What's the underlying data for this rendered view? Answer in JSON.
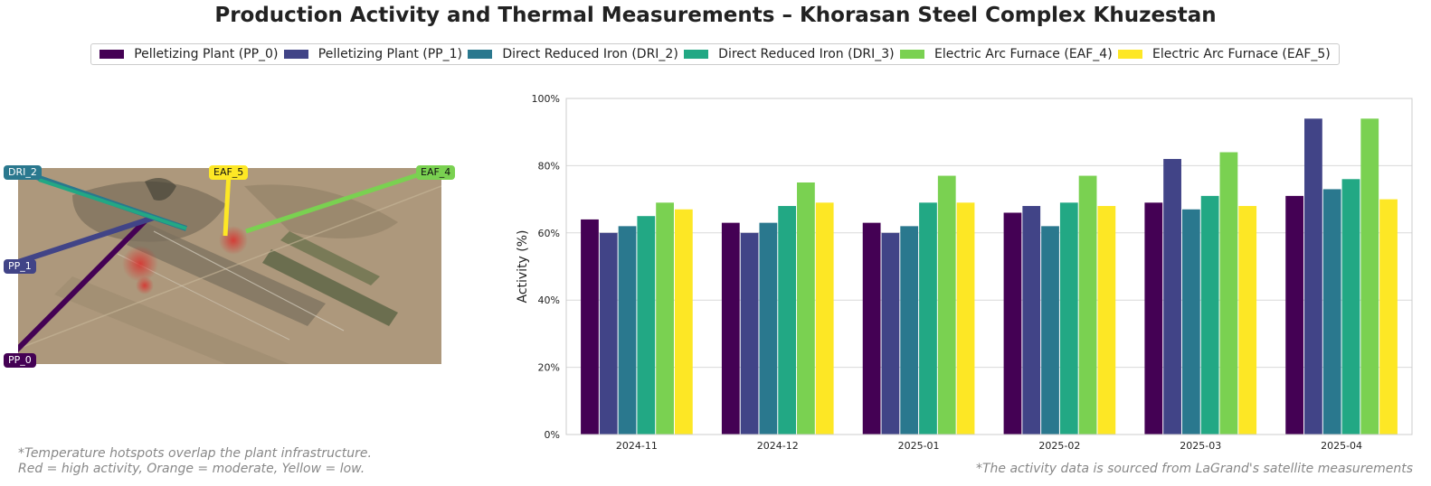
{
  "title": "Production Activity and Thermal Measurements – Khorasan Steel Complex Khuzestan",
  "legend": [
    {
      "label": "Pelletizing Plant (PP_0)",
      "color": "#440154"
    },
    {
      "label": "Pelletizing Plant (PP_1)",
      "color": "#414487"
    },
    {
      "label": "Direct Reduced Iron (DRI_2)",
      "color": "#2a788e"
    },
    {
      "label": "Direct Reduced Iron (DRI_3)",
      "color": "#22a884"
    },
    {
      "label": "Electric Arc Furnace (EAF_4)",
      "color": "#7ad151"
    },
    {
      "label": "Electric Arc Furnace (EAF_5)",
      "color": "#fde725"
    }
  ],
  "map": {
    "labels": [
      {
        "id": "PP_0",
        "text": "PP_0",
        "color": "#440154",
        "text_color": "#ffffff"
      },
      {
        "id": "PP_1",
        "text": "PP_1",
        "color": "#414487",
        "text_color": "#ffffff"
      },
      {
        "id": "DRI_2",
        "text": "DRI_2",
        "color": "#2a788e",
        "text_color": "#ffffff"
      },
      {
        "id": "EAF_5",
        "text": "EAF_5",
        "color": "#fde725",
        "text_color": "#111111"
      },
      {
        "id": "EAF_4",
        "text": "EAF_4",
        "color": "#7ad151",
        "text_color": "#111111"
      }
    ],
    "note_line1": "*Temperature hotspots overlap the plant infrastructure.",
    "note_line2": "Red = high activity, Orange = moderate, Yellow = low."
  },
  "source_note": "*The activity data is sourced from LaGrand's satellite measurements",
  "chart_data": {
    "type": "bar",
    "categories": [
      "2024-11",
      "2024-12",
      "2025-01",
      "2025-02",
      "2025-03",
      "2025-04"
    ],
    "ylabel": "Activity (%)",
    "ylim": [
      0,
      100
    ],
    "yticks": [
      "0%",
      "20%",
      "40%",
      "60%",
      "80%",
      "100%"
    ],
    "grid": true,
    "legend_position": "top-center",
    "series": [
      {
        "name": "Pelletizing Plant (PP_0)",
        "color": "#440154",
        "values": [
          64,
          63,
          63,
          66,
          69,
          71
        ]
      },
      {
        "name": "Pelletizing Plant (PP_1)",
        "color": "#414487",
        "values": [
          60,
          60,
          60,
          68,
          82,
          94
        ]
      },
      {
        "name": "Direct Reduced Iron (DRI_2)",
        "color": "#2a788e",
        "values": [
          62,
          63,
          62,
          62,
          67,
          73
        ]
      },
      {
        "name": "Direct Reduced Iron (DRI_3)",
        "color": "#22a884",
        "values": [
          65,
          68,
          69,
          69,
          71,
          76
        ]
      },
      {
        "name": "Electric Arc Furnace (EAF_4)",
        "color": "#7ad151",
        "values": [
          69,
          75,
          77,
          77,
          84,
          94
        ]
      },
      {
        "name": "Electric Arc Furnace (EAF_5)",
        "color": "#fde725",
        "values": [
          67,
          69,
          69,
          68,
          68,
          70
        ]
      }
    ]
  }
}
